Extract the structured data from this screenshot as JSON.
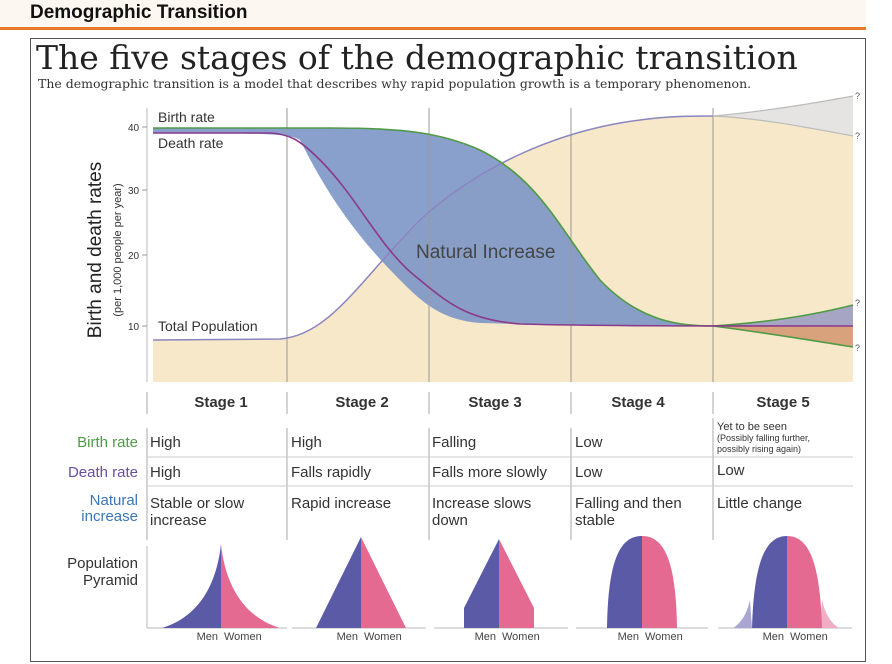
{
  "header": {
    "title": "Demographic Transition"
  },
  "figure": {
    "title": "The five stages of the demographic transition",
    "subtitle": "The demographic transition is a model that describes why rapid population growth is a temporary phenomenon."
  },
  "chart_data": {
    "type": "line",
    "ylabel": "Birth and death rates",
    "ylabel_sub": "(per 1,000 people per year)",
    "yticks": [
      "10",
      "20",
      "30",
      "40"
    ],
    "ylim": [
      0,
      42
    ],
    "grid": false,
    "series": [
      {
        "name": "Birth rate",
        "color": "#4f9a45",
        "description": "Constant at about 39.5 through Stage 1 and most of Stage 2, falls steeply in Stage 3, reaches about 10 at the start of Stage 5; then either rises or falls further"
      },
      {
        "name": "Death rate",
        "color": "#8a3a8c",
        "description": "Constant at about 39 in Stage 1, falls rapidly in Stage 2, levels to about 10 in Stage 3 and stays there"
      },
      {
        "name": "Total Population",
        "color": "#8a85c0",
        "description": "Low and flat in Stage 1, S-shaped rise through Stages 2 to 4, uncertain in Stage 5"
      }
    ],
    "annotations": {
      "area": "Natural Increase",
      "uncertain_marker": "?"
    },
    "stages": [
      "Stage 1",
      "Stage 2",
      "Stage 3",
      "Stage 4",
      "Stage 5"
    ],
    "rows": [
      {
        "label": "Birth rate",
        "color": "#4f9a45",
        "cells": [
          "High",
          "High",
          "Falling",
          "Low",
          "Yet to be seen (Possibly falling further, possibly rising again)"
        ]
      },
      {
        "label": "Death rate",
        "color": "#6a4ea0",
        "cells": [
          "High",
          "Falls rapidly",
          "Falls more slowly",
          "Low",
          "Low"
        ]
      },
      {
        "label": "Natural increase",
        "color": "#3a76b5",
        "cells": [
          "Stable or slow increase",
          "Rapid increase",
          "Increase slows down",
          "Falling and then stable",
          "Little change"
        ]
      }
    ],
    "stage5_note": {
      "line1": "Yet to be seen",
      "line2": "(Possibly falling further,",
      "line3": "possibly rising again)"
    },
    "pyramid": {
      "label_line1": "Population",
      "label_line2": "Pyramid",
      "men": "Men",
      "women": "Women",
      "men_color": "#5a5aa6",
      "women_color": "#e56a92"
    },
    "natural_increase_label": [
      "Natural",
      "increase"
    ]
  },
  "colors": {
    "accent": "#e8782a",
    "area_fill": "#f6e8c8",
    "increase_fill": "#7d96c6",
    "separator": "#999999"
  }
}
